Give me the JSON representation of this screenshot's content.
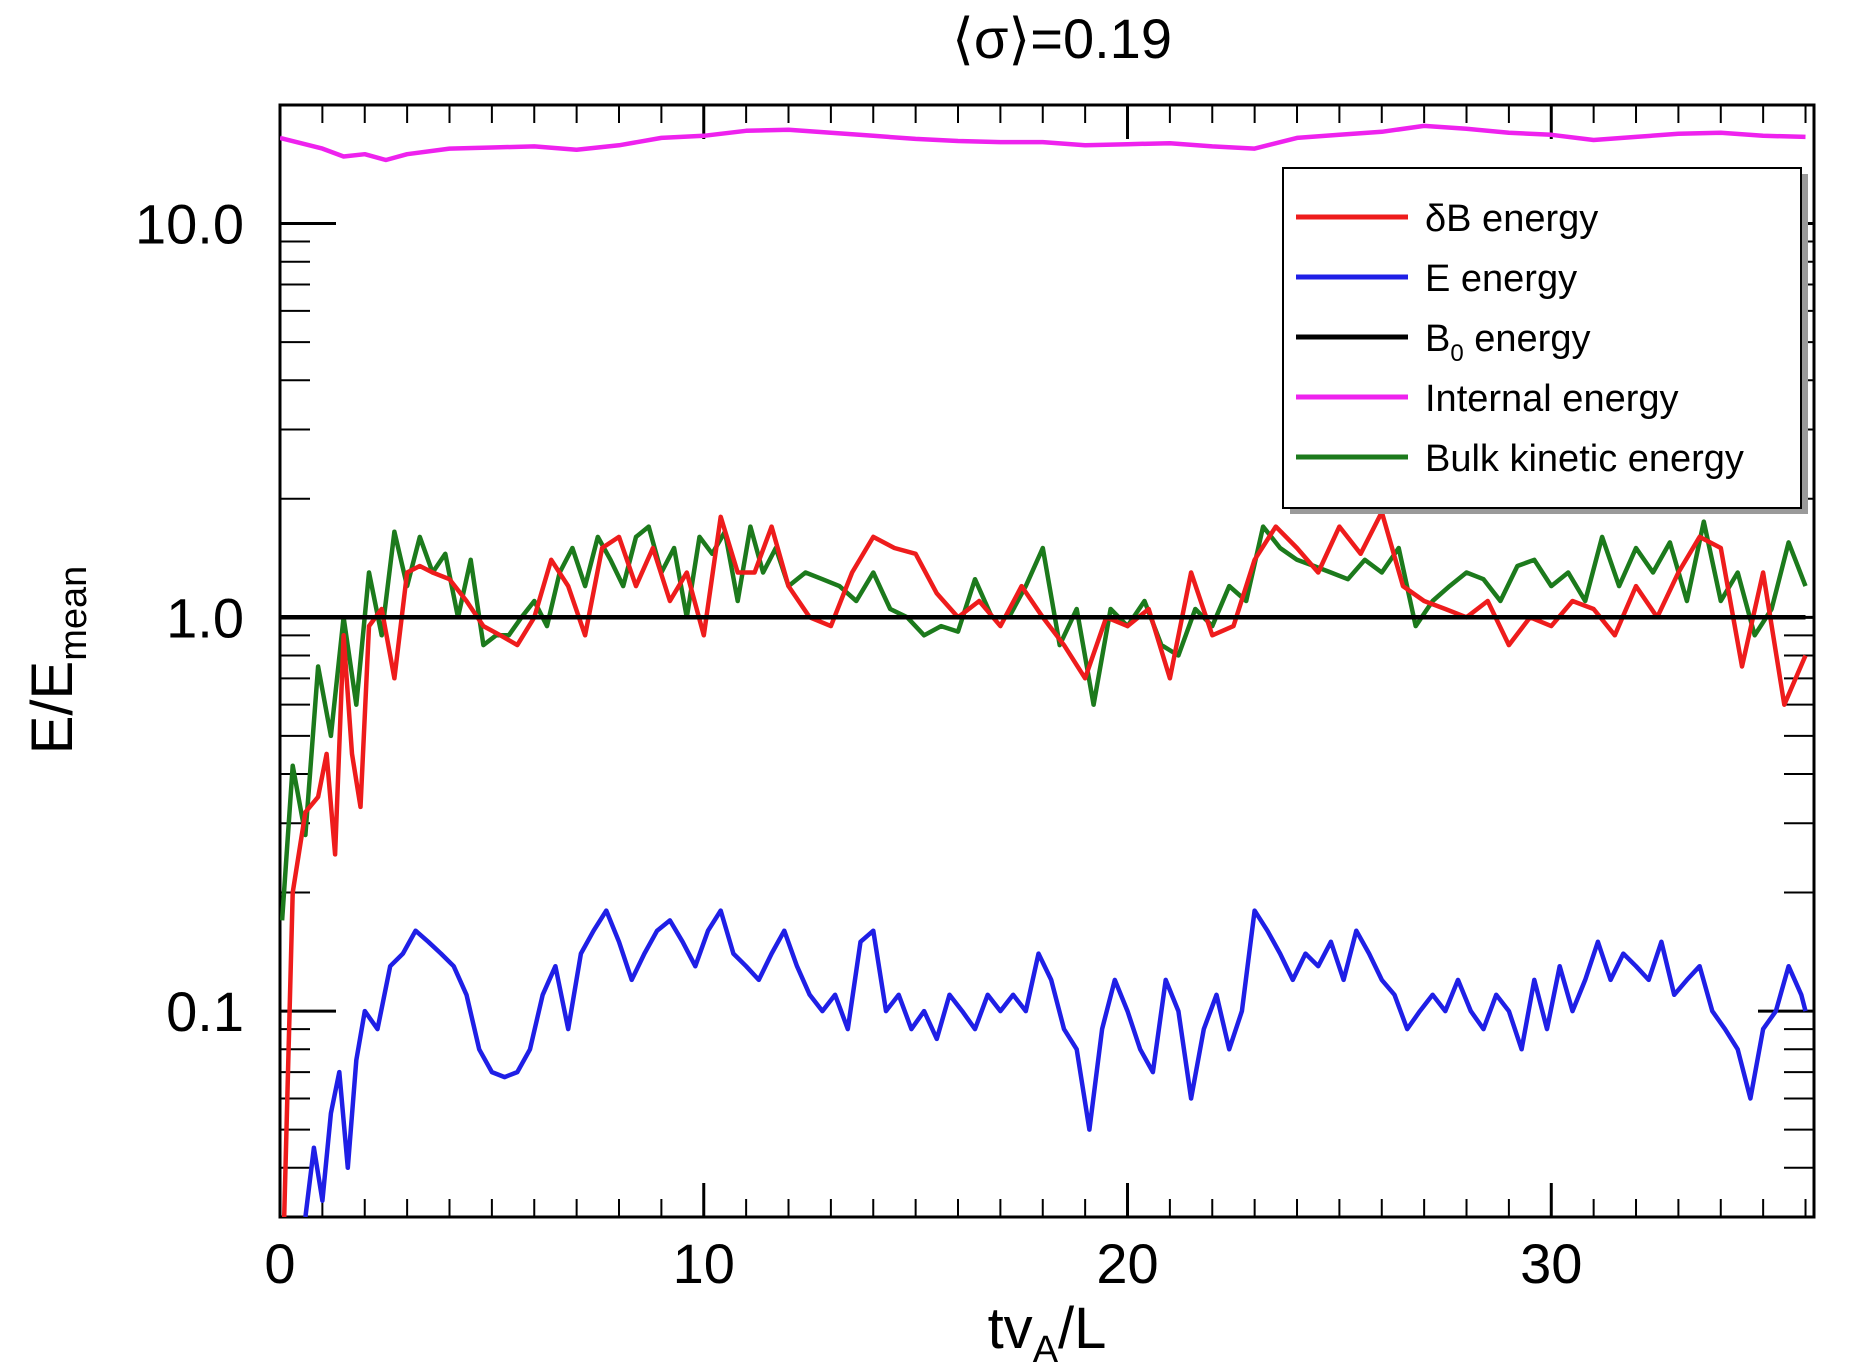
{
  "chart_data": {
    "type": "line",
    "title": "⟨σ⟩=0.19",
    "xlabel": {
      "main": "tv",
      "sub": "A",
      "rest": "/L"
    },
    "ylabel": {
      "main": "E/E",
      "sub": "mean"
    },
    "xlim": [
      0,
      36.2
    ],
    "ylim": [
      0.03,
      20
    ],
    "yscale": "log",
    "x_ticks": [
      {
        "value": 0,
        "label": "0"
      },
      {
        "value": 10,
        "label": "10"
      },
      {
        "value": 20,
        "label": "20"
      },
      {
        "value": 30,
        "label": "30"
      }
    ],
    "y_ticks": [
      {
        "value": 0.1,
        "label": "0.1"
      },
      {
        "value": 1.0,
        "label": "1.0"
      },
      {
        "value": 10.0,
        "label": "10.0"
      }
    ],
    "legend": {
      "position": "top-right",
      "entries": [
        {
          "label": "δB energy",
          "color": "#ee1c1c"
        },
        {
          "label": "E energy",
          "color": "#1f1fe6"
        },
        {
          "label_main": "B",
          "label_sub": "0",
          "label_rest": " energy",
          "color": "#000000"
        },
        {
          "label": "Internal energy",
          "color": "#ee22ee"
        },
        {
          "label": "Bulk kinetic energy",
          "color": "#1c7a1c"
        }
      ]
    },
    "series": [
      {
        "name": "δB energy",
        "color": "#ee1c1c",
        "x": [
          0.1,
          0.3,
          0.6,
          0.9,
          1.1,
          1.3,
          1.5,
          1.7,
          1.9,
          2.1,
          2.4,
          2.7,
          3.0,
          3.3,
          3.6,
          4.0,
          4.4,
          4.8,
          5.2,
          5.6,
          6.0,
          6.4,
          6.8,
          7.2,
          7.6,
          8.0,
          8.4,
          8.8,
          9.2,
          9.6,
          10.0,
          10.4,
          10.8,
          11.2,
          11.6,
          12.0,
          12.5,
          13.0,
          13.5,
          14.0,
          14.5,
          15.0,
          15.5,
          16.0,
          16.5,
          17.0,
          17.5,
          18.0,
          18.5,
          19.0,
          19.5,
          20.0,
          20.5,
          21.0,
          21.5,
          22.0,
          22.5,
          23.0,
          23.5,
          24.0,
          24.5,
          25.0,
          25.5,
          26.0,
          26.5,
          27.0,
          27.5,
          28.0,
          28.5,
          29.0,
          29.5,
          30.0,
          30.5,
          31.0,
          31.5,
          32.0,
          32.5,
          33.0,
          33.5,
          34.0,
          34.5,
          35.0,
          35.5,
          36.0
        ],
        "y": [
          0.03,
          0.2,
          0.32,
          0.35,
          0.45,
          0.25,
          0.9,
          0.45,
          0.33,
          0.95,
          1.05,
          0.7,
          1.3,
          1.35,
          1.3,
          1.25,
          1.1,
          0.95,
          0.9,
          0.85,
          1.0,
          1.4,
          1.2,
          0.9,
          1.5,
          1.6,
          1.2,
          1.5,
          1.1,
          1.3,
          0.9,
          1.8,
          1.3,
          1.3,
          1.7,
          1.2,
          1.0,
          0.95,
          1.3,
          1.6,
          1.5,
          1.45,
          1.15,
          1.0,
          1.1,
          0.95,
          1.2,
          1.0,
          0.85,
          0.7,
          1.0,
          0.95,
          1.05,
          0.7,
          1.3,
          0.9,
          0.95,
          1.4,
          1.7,
          1.5,
          1.3,
          1.7,
          1.45,
          1.85,
          1.2,
          1.1,
          1.05,
          1.0,
          1.1,
          0.85,
          1.0,
          0.95,
          1.1,
          1.05,
          0.9,
          1.2,
          1.0,
          1.3,
          1.6,
          1.5,
          0.75,
          1.3,
          0.6,
          0.8
        ]
      },
      {
        "name": "E energy",
        "color": "#1f1fe6",
        "x": [
          0.6,
          0.8,
          1.0,
          1.2,
          1.4,
          1.6,
          1.8,
          2.0,
          2.3,
          2.6,
          2.9,
          3.2,
          3.5,
          3.8,
          4.1,
          4.4,
          4.7,
          5.0,
          5.3,
          5.6,
          5.9,
          6.2,
          6.5,
          6.8,
          7.1,
          7.4,
          7.7,
          8.0,
          8.3,
          8.6,
          8.9,
          9.2,
          9.5,
          9.8,
          10.1,
          10.4,
          10.7,
          11.0,
          11.3,
          11.6,
          11.9,
          12.2,
          12.5,
          12.8,
          13.1,
          13.4,
          13.7,
          14.0,
          14.3,
          14.6,
          14.9,
          15.2,
          15.5,
          15.8,
          16.1,
          16.4,
          16.7,
          17.0,
          17.3,
          17.6,
          17.9,
          18.2,
          18.5,
          18.8,
          19.1,
          19.4,
          19.7,
          20.0,
          20.3,
          20.6,
          20.9,
          21.2,
          21.5,
          21.8,
          22.1,
          22.4,
          22.7,
          23.0,
          23.3,
          23.6,
          23.9,
          24.2,
          24.5,
          24.8,
          25.1,
          25.4,
          25.7,
          26.0,
          26.3,
          26.6,
          26.9,
          27.2,
          27.5,
          27.8,
          28.1,
          28.4,
          28.7,
          29.0,
          29.3,
          29.6,
          29.9,
          30.2,
          30.5,
          30.8,
          31.1,
          31.4,
          31.7,
          32.0,
          32.3,
          32.6,
          32.9,
          33.2,
          33.5,
          33.8,
          34.1,
          34.4,
          34.7,
          35.0,
          35.3,
          35.6,
          35.9,
          36.0
        ],
        "y": [
          0.03,
          0.045,
          0.033,
          0.055,
          0.07,
          0.04,
          0.075,
          0.1,
          0.09,
          0.13,
          0.14,
          0.16,
          0.15,
          0.14,
          0.13,
          0.11,
          0.08,
          0.07,
          0.068,
          0.07,
          0.08,
          0.11,
          0.13,
          0.09,
          0.14,
          0.16,
          0.18,
          0.15,
          0.12,
          0.14,
          0.16,
          0.17,
          0.15,
          0.13,
          0.16,
          0.18,
          0.14,
          0.13,
          0.12,
          0.14,
          0.16,
          0.13,
          0.11,
          0.1,
          0.11,
          0.09,
          0.15,
          0.16,
          0.1,
          0.11,
          0.09,
          0.1,
          0.085,
          0.11,
          0.1,
          0.09,
          0.11,
          0.1,
          0.11,
          0.1,
          0.14,
          0.12,
          0.09,
          0.08,
          0.05,
          0.09,
          0.12,
          0.1,
          0.08,
          0.07,
          0.12,
          0.1,
          0.06,
          0.09,
          0.11,
          0.08,
          0.1,
          0.18,
          0.16,
          0.14,
          0.12,
          0.14,
          0.13,
          0.15,
          0.12,
          0.16,
          0.14,
          0.12,
          0.11,
          0.09,
          0.1,
          0.11,
          0.1,
          0.12,
          0.1,
          0.09,
          0.11,
          0.1,
          0.08,
          0.12,
          0.09,
          0.13,
          0.1,
          0.12,
          0.15,
          0.12,
          0.14,
          0.13,
          0.12,
          0.15,
          0.11,
          0.12,
          0.13,
          0.1,
          0.09,
          0.08,
          0.06,
          0.09,
          0.1,
          0.13,
          0.11,
          0.1
        ]
      },
      {
        "name": "B0 energy",
        "color": "#000000",
        "x": [
          0,
          36.0
        ],
        "y": [
          1.0,
          1.0
        ]
      },
      {
        "name": "Internal energy",
        "color": "#ee22ee",
        "x": [
          0,
          1,
          1.5,
          2,
          2.5,
          3,
          4,
          5,
          6,
          7,
          8,
          9,
          10,
          11,
          12,
          13,
          14,
          15,
          16,
          17,
          18,
          19,
          20,
          21,
          22,
          23,
          24,
          25,
          26,
          27,
          28,
          29,
          30,
          31,
          32,
          33,
          34,
          35,
          36
        ],
        "y": [
          16.5,
          15.5,
          14.8,
          15.0,
          14.5,
          15.0,
          15.5,
          15.6,
          15.7,
          15.4,
          15.8,
          16.5,
          16.7,
          17.2,
          17.3,
          17.0,
          16.7,
          16.4,
          16.2,
          16.1,
          16.1,
          15.8,
          15.9,
          16.0,
          15.7,
          15.5,
          16.5,
          16.8,
          17.1,
          17.7,
          17.4,
          17.0,
          16.8,
          16.3,
          16.6,
          16.9,
          17.0,
          16.7,
          16.6
        ]
      },
      {
        "name": "Bulk kinetic energy",
        "color": "#1c7a1c",
        "x": [
          0.05,
          0.3,
          0.6,
          0.9,
          1.2,
          1.5,
          1.8,
          2.1,
          2.4,
          2.7,
          3.0,
          3.3,
          3.6,
          3.9,
          4.2,
          4.5,
          4.8,
          5.1,
          5.4,
          5.7,
          6.0,
          6.3,
          6.6,
          6.9,
          7.2,
          7.5,
          7.8,
          8.1,
          8.4,
          8.7,
          9.0,
          9.3,
          9.6,
          9.9,
          10.2,
          10.5,
          10.8,
          11.1,
          11.4,
          11.7,
          12.0,
          12.4,
          12.8,
          13.2,
          13.6,
          14.0,
          14.4,
          14.8,
          15.2,
          15.6,
          16.0,
          16.4,
          16.8,
          17.2,
          17.6,
          18.0,
          18.4,
          18.8,
          19.2,
          19.6,
          20.0,
          20.4,
          20.8,
          21.2,
          21.6,
          22.0,
          22.4,
          22.8,
          23.2,
          23.6,
          24.0,
          24.4,
          24.8,
          25.2,
          25.6,
          26.0,
          26.4,
          26.8,
          27.2,
          27.6,
          28.0,
          28.4,
          28.8,
          29.2,
          29.6,
          30.0,
          30.4,
          30.8,
          31.2,
          31.6,
          32.0,
          32.4,
          32.8,
          33.2,
          33.6,
          34.0,
          34.4,
          34.8,
          35.2,
          35.6,
          36.0
        ],
        "y": [
          0.17,
          0.42,
          0.28,
          0.75,
          0.5,
          1.0,
          0.6,
          1.3,
          0.9,
          1.65,
          1.2,
          1.6,
          1.3,
          1.45,
          1.0,
          1.4,
          0.85,
          0.9,
          0.9,
          1.0,
          1.1,
          0.95,
          1.3,
          1.5,
          1.2,
          1.6,
          1.4,
          1.2,
          1.6,
          1.7,
          1.3,
          1.5,
          1.0,
          1.6,
          1.45,
          1.65,
          1.1,
          1.7,
          1.3,
          1.5,
          1.2,
          1.3,
          1.25,
          1.2,
          1.1,
          1.3,
          1.05,
          1.0,
          0.9,
          0.95,
          0.92,
          1.25,
          1.0,
          1.0,
          1.2,
          1.5,
          0.85,
          1.05,
          0.6,
          1.05,
          0.95,
          1.1,
          0.85,
          0.8,
          1.05,
          0.95,
          1.2,
          1.1,
          1.7,
          1.5,
          1.4,
          1.35,
          1.3,
          1.25,
          1.4,
          1.3,
          1.5,
          0.95,
          1.1,
          1.2,
          1.3,
          1.25,
          1.1,
          1.35,
          1.4,
          1.2,
          1.3,
          1.1,
          1.6,
          1.2,
          1.5,
          1.3,
          1.55,
          1.1,
          1.75,
          1.1,
          1.3,
          0.9,
          1.05,
          1.55,
          1.2
        ]
      }
    ]
  }
}
